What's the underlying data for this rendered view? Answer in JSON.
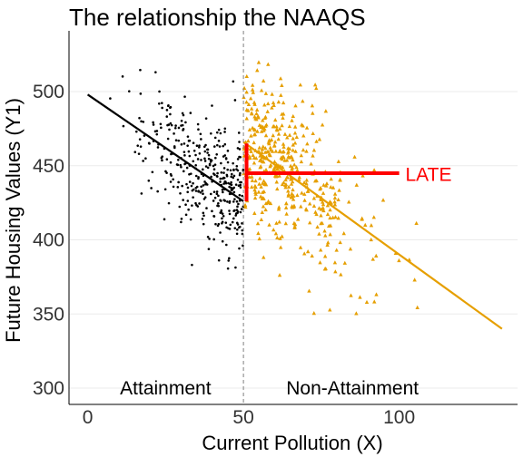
{
  "chart_data": {
    "type": "scatter",
    "title": "The relationship the NAAQS",
    "xlabel": "Current Pollution (X)",
    "ylabel": "Future Housing Values (Y1)",
    "xlim": [
      -6,
      138
    ],
    "ylim": [
      289,
      541
    ],
    "x_ticks": [
      0,
      50,
      100
    ],
    "y_ticks": [
      300,
      350,
      400,
      450,
      500
    ],
    "x_tick_labels": [
      "0",
      "50",
      "100"
    ],
    "y_tick_labels": [
      "300",
      "350",
      "400",
      "450",
      "500"
    ],
    "grid": "horizontal major gridlines",
    "cutoff": 50,
    "series": [
      {
        "group": "attainment",
        "color": "#000000",
        "marker": "circle",
        "x_range": [
          0,
          50
        ],
        "n": 380,
        "line": {
          "x": [
            0,
            50
          ],
          "y": [
            498,
            426
          ]
        }
      },
      {
        "group": "non-attainment",
        "color": "#E69F00",
        "marker": "triangle",
        "x_range": [
          50,
          133
        ],
        "n": 460,
        "line": {
          "x": [
            50,
            133
          ],
          "y": [
            466,
            340
          ]
        }
      }
    ],
    "annotations": [
      {
        "text": "Attainment",
        "x": 25,
        "y": 300
      },
      {
        "text": "Non-Attainment",
        "x": 85,
        "y": 300
      },
      {
        "text": "LATE",
        "x": 102,
        "y": 444,
        "color": "#FF0000"
      }
    ],
    "late_marker": {
      "color": "#FF0000",
      "vertical": {
        "x": 51,
        "y": [
          426,
          465
        ]
      },
      "horizontal": {
        "x": [
          51,
          100
        ],
        "y": 445
      }
    }
  }
}
